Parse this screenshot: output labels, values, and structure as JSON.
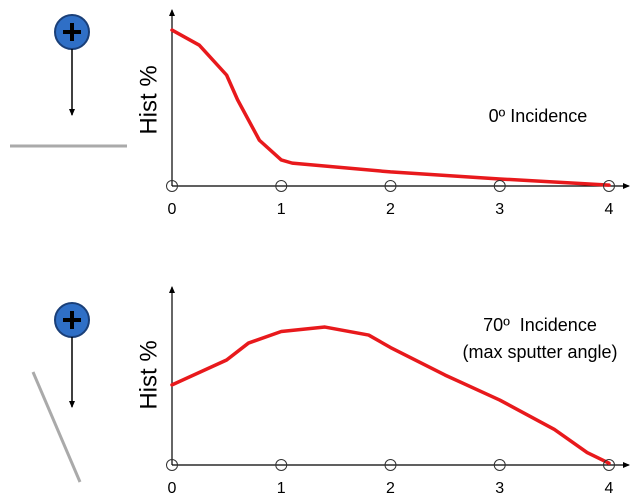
{
  "chart_data": [
    {
      "type": "line",
      "ylabel": "Hist %",
      "annotations": [
        "0º Incidence"
      ],
      "x": [
        0,
        0.25,
        0.5,
        0.6,
        0.8,
        1,
        1.1,
        2,
        3,
        4
      ],
      "series": [
        {
          "color": "#e8191c",
          "values": [
            88.6,
            80,
            63,
            49,
            26,
            14.8,
            13,
            8,
            4,
            0.5
          ]
        }
      ],
      "xlim": [
        0,
        4
      ],
      "xticks": [
        0,
        1,
        2,
        3,
        4
      ],
      "ylim": [
        0,
        100
      ]
    },
    {
      "type": "line",
      "ylabel": "Hist %",
      "annotations": [
        "70º  Incidence",
        "(max sputter angle)"
      ],
      "x": [
        0,
        0.5,
        0.7,
        1,
        1.4,
        1.8,
        2,
        2.5,
        3,
        3.5,
        3.8,
        4
      ],
      "series": [
        {
          "color": "#e8191c",
          "values": [
            45,
            59,
            68.5,
            75,
            77.5,
            73,
            66,
            50.5,
            36.5,
            20,
            7,
            1
          ]
        }
      ],
      "xlim": [
        0,
        4
      ],
      "xticks": [
        0,
        1,
        2,
        3,
        4
      ],
      "ylim": [
        0,
        100
      ]
    }
  ]
}
